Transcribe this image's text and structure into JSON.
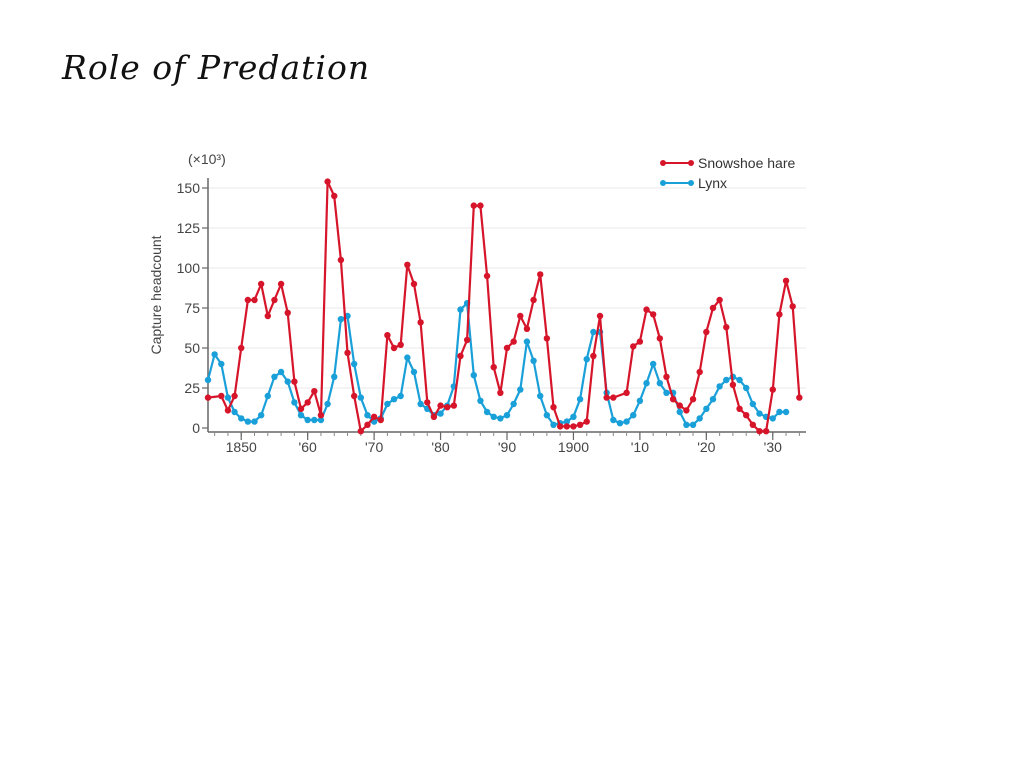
{
  "slide": {
    "title": "Role of Predation"
  },
  "chart_data": {
    "type": "line",
    "title": "",
    "xlabel": "",
    "ylabel": "Capture headcount",
    "y_unit": "(×10³)",
    "ylim": [
      0,
      160
    ],
    "xlim": [
      1845,
      1935
    ],
    "yticks": [
      0,
      25,
      50,
      75,
      100,
      125,
      150
    ],
    "ytick_labels": [
      "0",
      "25",
      "50",
      "75",
      "100",
      "125",
      "150"
    ],
    "xticks": [
      1850,
      1860,
      1870,
      1880,
      1890,
      1900,
      1910,
      1920,
      1930
    ],
    "xtick_labels": [
      "1850",
      "'60",
      "'70",
      "'80",
      "'90",
      "1900",
      "'10",
      "'20",
      "'30"
    ],
    "legend_position": "top-right",
    "series": [
      {
        "name": "Snowshoe hare",
        "color": "#d6152b",
        "x": [
          1845,
          1847,
          1848,
          1849,
          1850,
          1851,
          1852,
          1853,
          1854,
          1855,
          1856,
          1857,
          1858,
          1859,
          1860,
          1861,
          1862,
          1863,
          1864,
          1865,
          1866,
          1867,
          1868,
          1869,
          1870,
          1871,
          1872,
          1873,
          1874,
          1875,
          1876,
          1877,
          1878,
          1879,
          1880,
          1881,
          1882,
          1883,
          1884,
          1885,
          1886,
          1887,
          1888,
          1889,
          1890,
          1891,
          1892,
          1893,
          1894,
          1895,
          1896,
          1897,
          1898,
          1899,
          1900,
          1901,
          1902,
          1903,
          1904,
          1905,
          1906,
          1908,
          1909,
          1910,
          1911,
          1912,
          1913,
          1914,
          1915,
          1916,
          1917,
          1918,
          1919,
          1920,
          1921,
          1922,
          1923,
          1924,
          1925,
          1926,
          1927,
          1928,
          1929,
          1930,
          1931,
          1932,
          1933,
          1934
        ],
        "values": [
          19,
          20,
          11,
          20,
          50,
          80,
          80,
          90,
          70,
          80,
          90,
          72,
          29,
          12,
          16,
          23,
          8,
          154,
          145,
          105,
          47,
          20,
          -2,
          2,
          7,
          5,
          58,
          50,
          52,
          102,
          90,
          66,
          16,
          7,
          14,
          13,
          14,
          45,
          55,
          139,
          139,
          95,
          38,
          22,
          50,
          54,
          70,
          62,
          80,
          96,
          56,
          13,
          1,
          1,
          1,
          2,
          4,
          45,
          70,
          19,
          19,
          22,
          51,
          54,
          74,
          71,
          56,
          32,
          18,
          14,
          11,
          18,
          35,
          60,
          75,
          80,
          63,
          27,
          12,
          8,
          2,
          -2,
          -2,
          24,
          71,
          92,
          76,
          19
        ]
      },
      {
        "name": "Lynx",
        "color": "#1aa0d9",
        "x": [
          1845,
          1846,
          1847,
          1848,
          1849,
          1850,
          1851,
          1852,
          1853,
          1854,
          1855,
          1856,
          1857,
          1858,
          1859,
          1860,
          1861,
          1862,
          1863,
          1864,
          1865,
          1866,
          1867,
          1868,
          1869,
          1870,
          1871,
          1872,
          1873,
          1874,
          1875,
          1876,
          1877,
          1878,
          1879,
          1880,
          1881,
          1882,
          1883,
          1884,
          1885,
          1886,
          1887,
          1888,
          1889,
          1890,
          1891,
          1892,
          1893,
          1894,
          1895,
          1896,
          1897,
          1898,
          1899,
          1900,
          1901,
          1902,
          1903,
          1904,
          1905,
          1906,
          1907,
          1908,
          1909,
          1910,
          1911,
          1912,
          1913,
          1914,
          1915,
          1916,
          1917,
          1918,
          1919,
          1920,
          1921,
          1922,
          1923,
          1924,
          1925,
          1926,
          1927,
          1928,
          1929,
          1930,
          1931,
          1932
        ],
        "values": [
          30,
          46,
          40,
          19,
          10,
          6,
          4,
          4,
          8,
          20,
          32,
          35,
          29,
          16,
          8,
          5,
          5,
          5,
          15,
          32,
          68,
          70,
          40,
          19,
          8,
          4,
          6,
          15,
          18,
          20,
          44,
          35,
          15,
          12,
          8,
          9,
          14,
          26,
          74,
          78,
          33,
          17,
          10,
          7,
          6,
          8,
          15,
          24,
          54,
          42,
          20,
          8,
          2,
          3,
          4,
          7,
          18,
          43,
          60,
          60,
          22,
          5,
          3,
          4,
          8,
          17,
          28,
          40,
          28,
          22,
          22,
          10,
          2,
          2,
          6,
          12,
          18,
          26,
          30,
          32,
          30,
          25,
          15,
          9,
          7,
          6,
          10,
          10
        ]
      }
    ]
  }
}
